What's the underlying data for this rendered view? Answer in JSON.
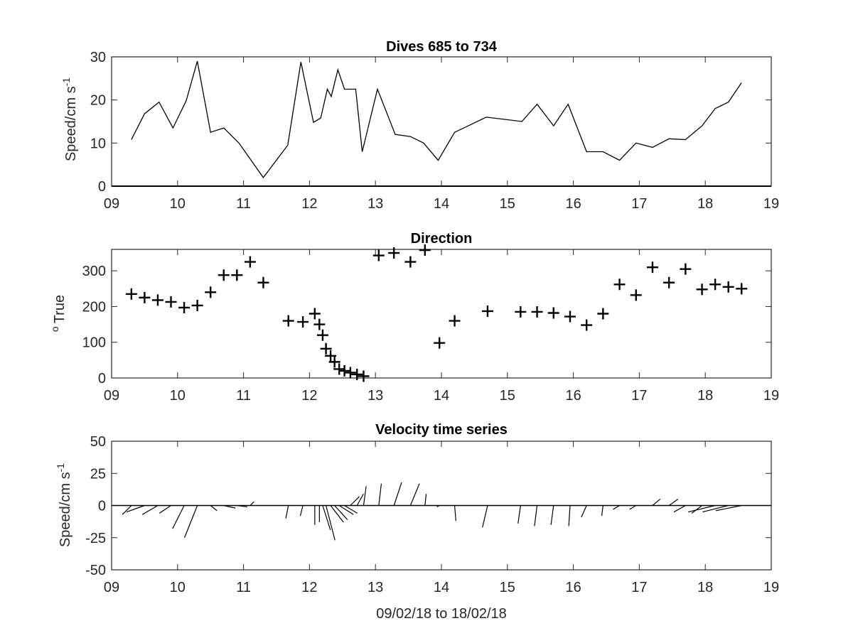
{
  "figure": {
    "xlabel": "09/02/18 to 18/02/18",
    "x_tick_labels": [
      "09",
      "10",
      "11",
      "12",
      "13",
      "14",
      "15",
      "16",
      "17",
      "18",
      "19"
    ]
  },
  "chart_data": [
    {
      "type": "line",
      "title": "Dives 685 to 734",
      "ylabel": "Speed/cm s",
      "ylabel_superscript": "-1",
      "xlim": [
        9,
        19
      ],
      "ylim": [
        0,
        30
      ],
      "y_ticks": [
        0,
        10,
        20,
        30
      ],
      "grid": false,
      "color": "#000000",
      "x": [
        9.3,
        9.5,
        9.72,
        9.93,
        10.13,
        10.3,
        10.5,
        10.7,
        10.93,
        11.3,
        11.67,
        11.87,
        12.06,
        12.17,
        12.27,
        12.33,
        12.43,
        12.53,
        12.7,
        12.8,
        13.03,
        13.3,
        13.53,
        13.73,
        13.95,
        14.2,
        14.68,
        15.22,
        15.45,
        15.7,
        15.92,
        16.2,
        16.45,
        16.7,
        16.95,
        17.2,
        17.45,
        17.7,
        17.95,
        18.15,
        18.35,
        18.55
      ],
      "values": [
        10.8,
        16.8,
        19.5,
        13.5,
        19.8,
        29,
        12.5,
        13.5,
        10,
        2,
        9.5,
        28.8,
        14.8,
        15.8,
        22.5,
        20.8,
        27,
        22.5,
        22.5,
        8,
        22.5,
        12,
        11.5,
        10,
        6,
        12.5,
        16,
        15,
        19,
        14,
        19,
        8,
        8,
        6,
        10,
        9,
        11,
        10.8,
        14,
        18,
        19.5,
        24
      ]
    },
    {
      "type": "scatter",
      "title": "Direction",
      "ylabel": "True",
      "ylabel_prefix": "o",
      "xlim": [
        9,
        19
      ],
      "ylim": [
        0,
        360
      ],
      "y_ticks": [
        0,
        100,
        200,
        300
      ],
      "grid": false,
      "marker": "+",
      "color": "#000000",
      "x": [
        9.3,
        9.5,
        9.7,
        9.9,
        10.1,
        10.3,
        10.5,
        10.7,
        10.9,
        11.1,
        11.3,
        11.68,
        11.9,
        12.08,
        12.15,
        12.2,
        12.25,
        12.32,
        12.38,
        12.45,
        12.53,
        12.62,
        12.72,
        12.82,
        13.05,
        13.28,
        13.53,
        13.75,
        13.97,
        14.2,
        14.7,
        15.2,
        15.45,
        15.7,
        15.95,
        16.2,
        16.45,
        16.7,
        16.95,
        17.2,
        17.45,
        17.7,
        17.95,
        18.15,
        18.35,
        18.55
      ],
      "values": [
        235,
        225,
        218,
        213,
        197,
        203,
        240,
        288,
        288,
        325,
        267,
        160,
        157,
        180,
        150,
        120,
        82,
        62,
        45,
        25,
        20,
        15,
        10,
        5,
        343,
        350,
        325,
        358,
        98,
        160,
        187,
        185,
        185,
        182,
        172,
        148,
        180,
        262,
        232,
        310,
        267,
        305,
        248,
        262,
        255,
        250
      ]
    },
    {
      "type": "line",
      "subtype": "stick-vector",
      "title": "Velocity time series",
      "ylabel": "Speed/cm s",
      "ylabel_superscript": "-1",
      "xlim": [
        9,
        19
      ],
      "ylim": [
        -50,
        50
      ],
      "y_ticks": [
        50,
        25,
        0,
        -25,
        -50
      ],
      "grid": false,
      "color": "#000000",
      "baseline": 0,
      "x": [
        9.3,
        9.5,
        9.7,
        9.9,
        10.1,
        10.3,
        10.5,
        10.7,
        10.9,
        11.1,
        11.68,
        11.9,
        12.08,
        12.15,
        12.2,
        12.25,
        12.32,
        12.38,
        12.45,
        12.53,
        12.62,
        12.72,
        12.82,
        13.05,
        13.28,
        13.53,
        13.75,
        13.97,
        14.2,
        14.7,
        15.2,
        15.45,
        15.7,
        15.95,
        16.2,
        16.45,
        16.7,
        16.95,
        17.2,
        17.45,
        17.7,
        17.95,
        18.15,
        18.35,
        18.55
      ],
      "u": [
        -7,
        -14,
        -12,
        -9,
        -9,
        -10,
        5,
        9,
        8,
        3,
        -2,
        -2,
        0,
        0,
        6,
        7,
        10,
        10,
        11,
        10,
        7,
        5,
        2,
        2,
        6,
        7,
        1,
        -2,
        1,
        -4,
        -2,
        -2,
        -2,
        -1,
        -4,
        -1,
        -5,
        -5,
        6,
        7,
        -9,
        -8,
        -21,
        -20,
        -20
      ],
      "v": [
        -7,
        -5,
        -7,
        -6,
        -18,
        -25,
        -4,
        -2,
        -1,
        3,
        -10,
        -8,
        -15,
        -13,
        -19,
        -27,
        -13,
        -11,
        -7,
        -6,
        7,
        9,
        15,
        17,
        18,
        17,
        9,
        -1,
        -12,
        -17,
        -14,
        -16,
        -15,
        -16,
        -9,
        -8,
        -3,
        -3,
        5,
        5,
        -5,
        -6,
        -5,
        -5,
        -4
      ]
    }
  ]
}
